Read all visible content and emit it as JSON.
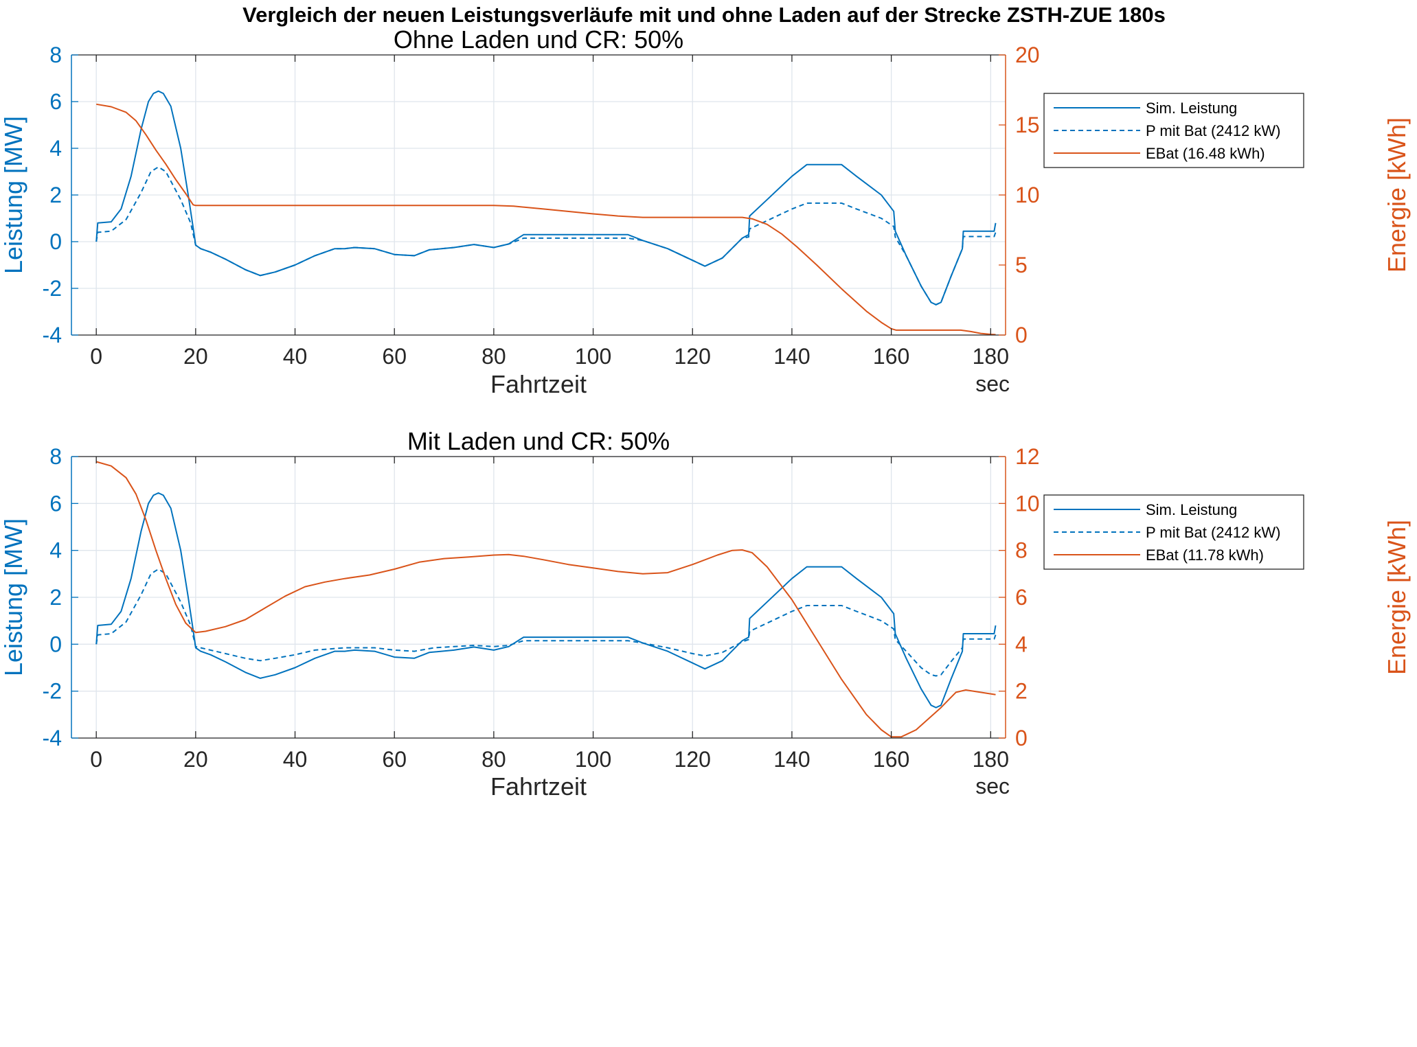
{
  "figure": {
    "suptitle": "Vergleich der neuen Leistungsverläufe mit und ohne Laden auf der Strecke ZSTH-ZUE 180s"
  },
  "colors": {
    "power": "#0072BD",
    "energy": "#D95319",
    "grid": "#dfe5ec",
    "axis": "#262626"
  },
  "chart_data": [
    {
      "type": "line",
      "title": "Ohne Laden und CR: 50%",
      "xlabel": "Fahrtzeit",
      "xunit": "sec",
      "ylabel_left": "Leistung [MW]",
      "ylabel_right": "Energie [kWh]",
      "xlim": [
        -5,
        183
      ],
      "ylim_left": [
        -4,
        8
      ],
      "ylim_right": [
        0,
        20
      ],
      "xticks": [
        0,
        20,
        40,
        60,
        80,
        100,
        120,
        140,
        160,
        180
      ],
      "yticks_left": [
        -4,
        -2,
        0,
        2,
        4,
        6,
        8
      ],
      "yticks_right": [
        0,
        5,
        10,
        15,
        20
      ],
      "grid": true,
      "legend_position": "top-right",
      "series": [
        {
          "name": "Sim. Leistung",
          "axis": "left",
          "style": "solid",
          "x": [
            0,
            0.3,
            3,
            5,
            7,
            9,
            10.5,
            11.5,
            12.5,
            13.5,
            15,
            17,
            18.5,
            19.5,
            20,
            21,
            23,
            26,
            30,
            33,
            36,
            40,
            44,
            48,
            50,
            52,
            56,
            60,
            64,
            67,
            72,
            76,
            80,
            83,
            86,
            95,
            100,
            107,
            110,
            115,
            120,
            122.5,
            126,
            130,
            131.3,
            131.5,
            135,
            140,
            143,
            150,
            153,
            158,
            160.5,
            160.8,
            163,
            166,
            168,
            169,
            170,
            172,
            174.3,
            174.5,
            180,
            180.7,
            181
          ],
          "y": [
            0,
            0.8,
            0.85,
            1.4,
            2.8,
            4.8,
            6,
            6.35,
            6.45,
            6.35,
            5.8,
            4,
            2,
            0.6,
            -0.15,
            -0.3,
            -0.45,
            -0.75,
            -1.2,
            -1.45,
            -1.3,
            -1.0,
            -0.6,
            -0.3,
            -0.3,
            -0.25,
            -0.3,
            -0.55,
            -0.6,
            -0.35,
            -0.25,
            -0.12,
            -0.25,
            -0.1,
            0.3,
            0.3,
            0.3,
            0.3,
            0.05,
            -0.3,
            -0.8,
            -1.05,
            -0.7,
            0.15,
            0.3,
            1.1,
            1.8,
            2.8,
            3.3,
            3.3,
            2.8,
            2.0,
            1.3,
            0.45,
            -0.6,
            -1.9,
            -2.6,
            -2.7,
            -2.6,
            -1.5,
            -0.3,
            0.45,
            0.45,
            0.45,
            0.8
          ]
        },
        {
          "name": "P mit Bat (2412 kW)",
          "axis": "left",
          "style": "dashed",
          "x": [
            0,
            0.3,
            3,
            6,
            9,
            11,
            12.5,
            14,
            17,
            19,
            20,
            21,
            23,
            26,
            30,
            33,
            36,
            40,
            44,
            48,
            50,
            52,
            56,
            60,
            64,
            67,
            72,
            76,
            80,
            83,
            86,
            95,
            100,
            107,
            110,
            115,
            120,
            122.5,
            126,
            130,
            131.3,
            131.5,
            135,
            140,
            143,
            150,
            153,
            158,
            160.5,
            160.8,
            163,
            166,
            168,
            169,
            170,
            172,
            174.3,
            174.5,
            180,
            180.7,
            181
          ],
          "y": [
            0,
            0.4,
            0.45,
            0.95,
            2.1,
            3.0,
            3.2,
            3.0,
            1.8,
            0.8,
            -0.15,
            -0.3,
            -0.45,
            -0.75,
            -1.2,
            -1.45,
            -1.3,
            -1.0,
            -0.6,
            -0.3,
            -0.3,
            -0.25,
            -0.3,
            -0.55,
            -0.6,
            -0.35,
            -0.25,
            -0.12,
            -0.25,
            -0.1,
            0.15,
            0.15,
            0.15,
            0.15,
            0.05,
            -0.3,
            -0.8,
            -1.05,
            -0.7,
            0.15,
            0.2,
            0.55,
            0.9,
            1.4,
            1.65,
            1.65,
            1.4,
            1.0,
            0.65,
            0.2,
            -0.6,
            -1.9,
            -2.6,
            -2.7,
            -2.6,
            -1.5,
            -0.3,
            0.22,
            0.22,
            0.22,
            0.4
          ]
        },
        {
          "name": "EBat (16.48 kWh)",
          "axis": "right",
          "style": "solid",
          "x": [
            0,
            3,
            6,
            8,
            10,
            12,
            14,
            16,
            18,
            19.5,
            20,
            30,
            40,
            50,
            60,
            70,
            80,
            84,
            90,
            100,
            105,
            110,
            120,
            125,
            130,
            132,
            135,
            138,
            141,
            145,
            150,
            155,
            158,
            160,
            161,
            165,
            170,
            174,
            176,
            178,
            180,
            181
          ],
          "y": [
            16.48,
            16.3,
            15.9,
            15.3,
            14.3,
            13.2,
            12.2,
            11.1,
            10.1,
            9.3,
            9.25,
            9.25,
            9.25,
            9.25,
            9.25,
            9.25,
            9.25,
            9.2,
            9.0,
            8.65,
            8.5,
            8.4,
            8.4,
            8.4,
            8.4,
            8.3,
            7.9,
            7.2,
            6.3,
            5.0,
            3.3,
            1.7,
            0.9,
            0.45,
            0.35,
            0.35,
            0.35,
            0.35,
            0.25,
            0.12,
            0.05,
            0.03
          ]
        }
      ]
    },
    {
      "type": "line",
      "title": "Mit Laden und CR: 50%",
      "xlabel": "Fahrtzeit",
      "xunit": "sec",
      "ylabel_left": "Leistung [MW]",
      "ylabel_right": "Energie [kWh]",
      "xlim": [
        -5,
        183
      ],
      "ylim_left": [
        -4,
        8
      ],
      "ylim_right": [
        0,
        12
      ],
      "xticks": [
        0,
        20,
        40,
        60,
        80,
        100,
        120,
        140,
        160,
        180
      ],
      "yticks_left": [
        -4,
        -2,
        0,
        2,
        4,
        6,
        8
      ],
      "yticks_right": [
        0,
        2,
        4,
        6,
        8,
        10,
        12
      ],
      "grid": true,
      "legend_position": "top-right",
      "series": [
        {
          "name": "Sim. Leistung",
          "axis": "left",
          "style": "solid",
          "x": [
            0,
            0.3,
            3,
            5,
            7,
            9,
            10.5,
            11.5,
            12.5,
            13.5,
            15,
            17,
            18.5,
            19.5,
            20,
            21,
            23,
            26,
            30,
            33,
            36,
            40,
            44,
            48,
            50,
            52,
            56,
            60,
            64,
            67,
            72,
            76,
            80,
            83,
            86,
            95,
            100,
            107,
            110,
            115,
            120,
            122.5,
            126,
            130,
            131.3,
            131.5,
            135,
            140,
            143,
            150,
            153,
            158,
            160.5,
            160.8,
            163,
            166,
            168,
            169,
            170,
            172,
            174.3,
            174.5,
            180,
            180.7,
            181
          ],
          "y": [
            0,
            0.8,
            0.85,
            1.4,
            2.8,
            4.8,
            6,
            6.35,
            6.45,
            6.35,
            5.8,
            4,
            2,
            0.6,
            -0.15,
            -0.3,
            -0.45,
            -0.75,
            -1.2,
            -1.45,
            -1.3,
            -1.0,
            -0.6,
            -0.3,
            -0.3,
            -0.25,
            -0.3,
            -0.55,
            -0.6,
            -0.35,
            -0.25,
            -0.12,
            -0.25,
            -0.1,
            0.3,
            0.3,
            0.3,
            0.3,
            0.05,
            -0.3,
            -0.8,
            -1.05,
            -0.7,
            0.15,
            0.3,
            1.1,
            1.8,
            2.8,
            3.3,
            3.3,
            2.8,
            2.0,
            1.3,
            0.45,
            -0.6,
            -1.9,
            -2.6,
            -2.7,
            -2.6,
            -1.5,
            -0.3,
            0.45,
            0.45,
            0.45,
            0.8
          ]
        },
        {
          "name": "P mit Bat (2412 kW)",
          "axis": "left",
          "style": "dashed",
          "x": [
            0,
            0.3,
            3,
            6,
            9,
            11,
            12.5,
            14,
            17,
            19,
            20,
            22,
            26,
            30,
            33,
            36,
            40,
            44,
            50,
            56,
            60,
            64,
            68,
            72,
            76,
            80,
            83,
            86,
            95,
            100,
            107,
            110,
            115,
            120,
            122.5,
            126,
            130,
            131.3,
            131.5,
            135,
            140,
            143,
            150,
            153,
            158,
            160.5,
            160.8,
            163,
            166,
            168,
            169,
            170,
            172,
            174.3,
            174.5,
            180,
            180.7,
            181
          ],
          "y": [
            0,
            0.4,
            0.45,
            0.95,
            2.1,
            3.0,
            3.2,
            3.0,
            1.8,
            0.8,
            -0.1,
            -0.2,
            -0.4,
            -0.6,
            -0.7,
            -0.6,
            -0.45,
            -0.25,
            -0.15,
            -0.15,
            -0.25,
            -0.3,
            -0.15,
            -0.1,
            -0.05,
            -0.1,
            -0.05,
            0.15,
            0.15,
            0.15,
            0.15,
            0.05,
            -0.15,
            -0.4,
            -0.5,
            -0.35,
            0.1,
            0.2,
            0.55,
            0.9,
            1.4,
            1.65,
            1.65,
            1.4,
            1.0,
            0.65,
            0.2,
            -0.3,
            -1.0,
            -1.3,
            -1.35,
            -1.3,
            -0.75,
            -0.15,
            0.22,
            0.22,
            0.22,
            0.4
          ]
        },
        {
          "name": "EBat (11.78 kWh)",
          "axis": "right",
          "style": "solid",
          "x": [
            0,
            3,
            6,
            8,
            10,
            12,
            14,
            16,
            18,
            20,
            22,
            26,
            30,
            34,
            38,
            42,
            46,
            50,
            55,
            60,
            65,
            70,
            75,
            80,
            83,
            86,
            90,
            95,
            100,
            105,
            110,
            115,
            120,
            125,
            128,
            130,
            132,
            135,
            140,
            145,
            150,
            155,
            158,
            160,
            162,
            165,
            170,
            173,
            175,
            178,
            181
          ],
          "y": [
            11.78,
            11.6,
            11.1,
            10.4,
            9.3,
            8.0,
            6.8,
            5.7,
            4.9,
            4.5,
            4.55,
            4.75,
            5.05,
            5.55,
            6.05,
            6.45,
            6.65,
            6.8,
            6.95,
            7.2,
            7.5,
            7.65,
            7.72,
            7.8,
            7.82,
            7.75,
            7.6,
            7.4,
            7.25,
            7.1,
            7.0,
            7.05,
            7.4,
            7.8,
            8.0,
            8.02,
            7.9,
            7.3,
            5.9,
            4.2,
            2.5,
            1.0,
            0.35,
            0.05,
            0.05,
            0.35,
            1.3,
            1.95,
            2.05,
            1.95,
            1.85
          ]
        }
      ]
    }
  ]
}
